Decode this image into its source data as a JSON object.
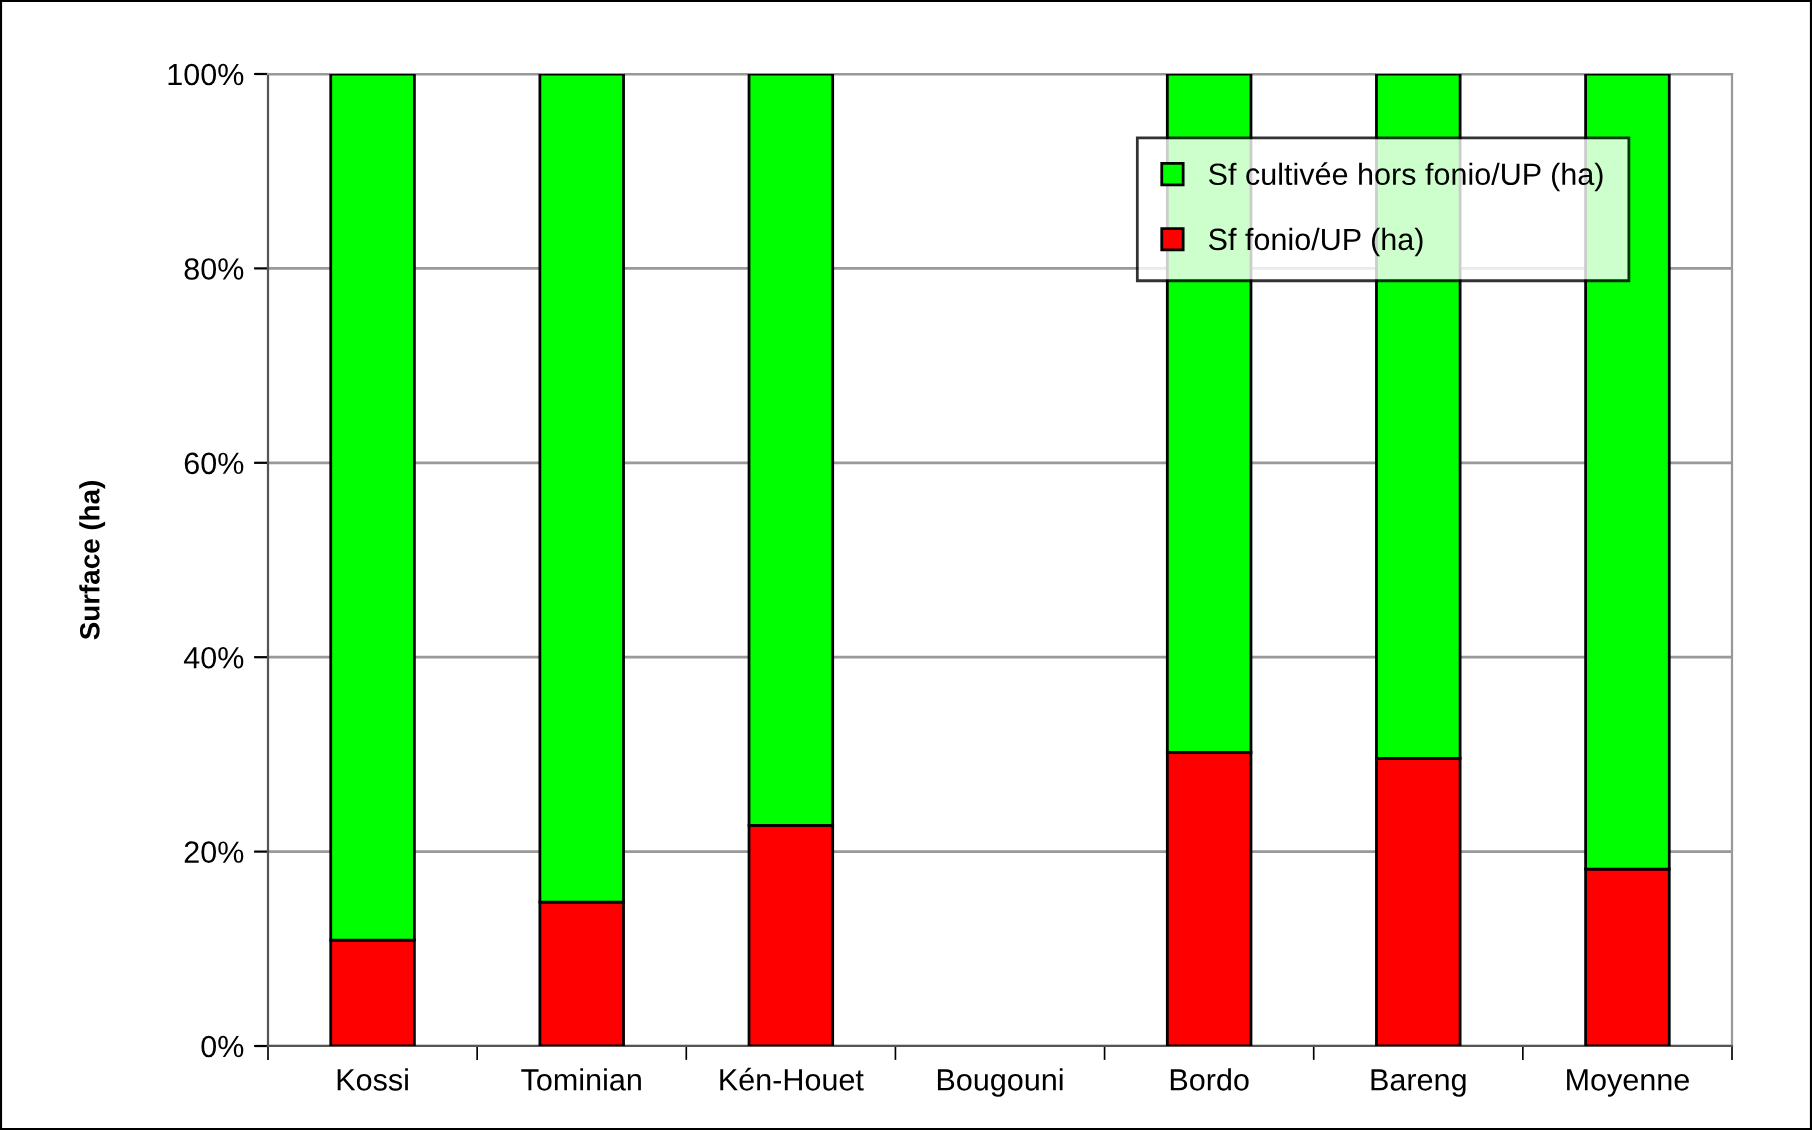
{
  "chart_data": {
    "type": "bar",
    "stacked": true,
    "ylabel": "Surface (ha)",
    "categories": [
      "Kossi",
      "Tominian",
      "Kén-Houet",
      "Bougouni",
      "Bordo",
      "Bareng",
      "Moyenne"
    ],
    "series": [
      {
        "name": "Sf fonio/UP (ha)",
        "color": "#ff0000",
        "values": [
          10.9,
          14.8,
          22.7,
          null,
          30.2,
          29.6,
          18.2
        ]
      },
      {
        "name": "Sf cultivée hors fonio/UP (ha)",
        "color": "#00ff00",
        "values": [
          89.1,
          85.2,
          77.3,
          null,
          69.8,
          70.4,
          81.8
        ]
      }
    ],
    "ylim": [
      0,
      100
    ],
    "yticks": [
      {
        "value": 0,
        "label": "0%"
      },
      {
        "value": 20,
        "label": "20%"
      },
      {
        "value": 40,
        "label": "40%"
      },
      {
        "value": 60,
        "label": "60%"
      },
      {
        "value": 80,
        "label": "80%"
      },
      {
        "value": 100,
        "label": "100%"
      }
    ],
    "grid": "y",
    "legend": "top right"
  }
}
